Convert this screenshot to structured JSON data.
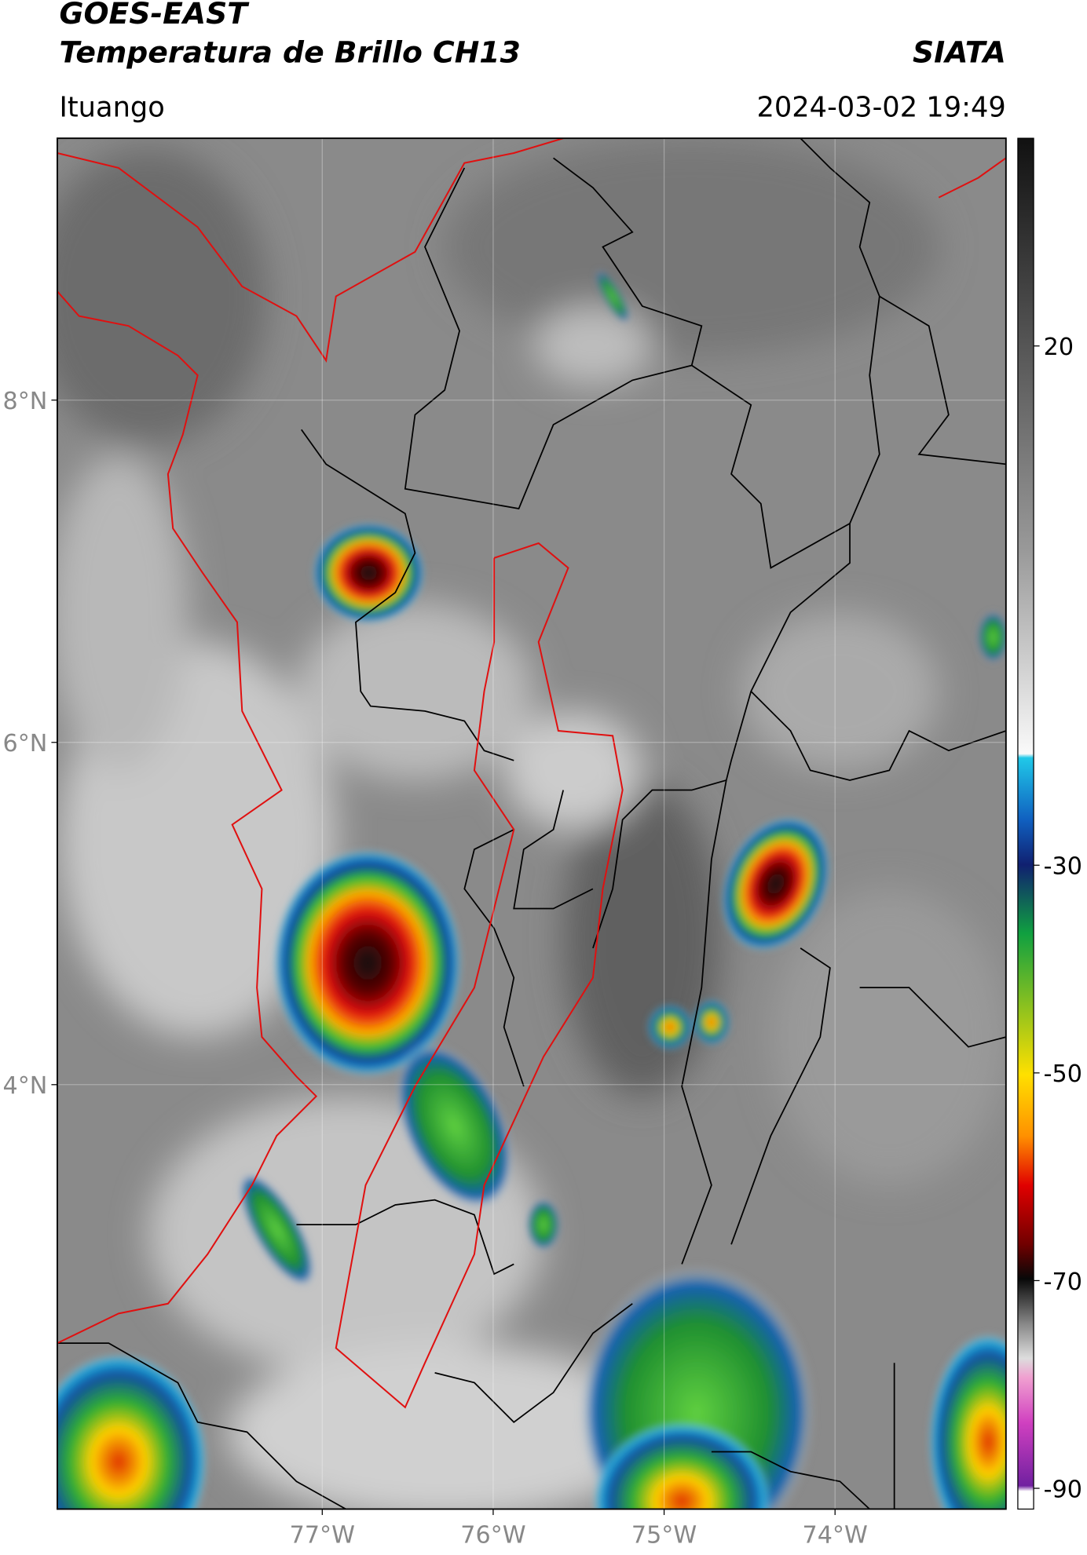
{
  "header": {
    "title": "GOES-EAST",
    "subtitle": "Temperatura de Brillo CH13",
    "source": "SIATA",
    "location": "Ituango",
    "datetime": "2024-03-02 19:49"
  },
  "map": {
    "xlim": [
      -78.55,
      -73.0
    ],
    "ylim": [
      1.52,
      9.53
    ],
    "xticks": [
      {
        "value": -77,
        "label": "77°W"
      },
      {
        "value": -76,
        "label": "76°W"
      },
      {
        "value": -75,
        "label": "75°W"
      },
      {
        "value": -74,
        "label": "74°W"
      }
    ],
    "yticks": [
      {
        "value": 8,
        "label": "8°N"
      },
      {
        "value": 6,
        "label": "6°N"
      },
      {
        "value": 4,
        "label": "4°N"
      }
    ],
    "grid": true
  },
  "colorbar": {
    "clim": [
      -92,
      40
    ],
    "ticks": [
      20,
      -30,
      -50,
      -70,
      -90
    ]
  }
}
